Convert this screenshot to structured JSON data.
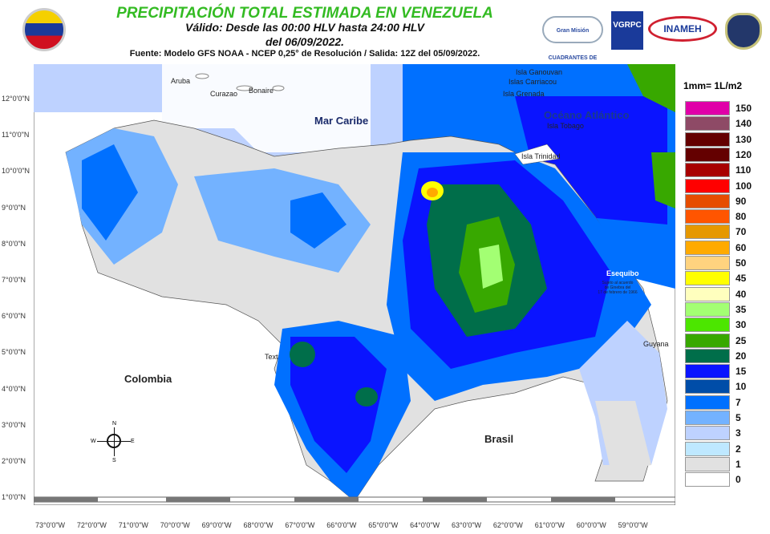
{
  "header": {
    "title": "PRECIPITACIÓN TOTAL ESTIMADA EN VENEZUELA",
    "valid": "Válido: Desde las 00:00 HLV hasta 24:00 HLV",
    "date": "del 06/09/2022.",
    "source": "Fuente: Modelo GFS NOAA - NCEP 0,25° de Resolución / Salida: 12Z del 05/09/2022."
  },
  "logos": {
    "cuadrantes": "Gran Misión CUADRANTES DE PAZ",
    "vgrpc": "VGRPC",
    "inameh": "INAMEH"
  },
  "legend": {
    "title": "1mm= 1L/m2",
    "items": [
      {
        "label": "150",
        "color": "#e000a8"
      },
      {
        "label": "140",
        "color": "#8e4a66"
      },
      {
        "label": "130",
        "color": "#640000"
      },
      {
        "label": "120",
        "color": "#640000"
      },
      {
        "label": "110",
        "color": "#a80000"
      },
      {
        "label": "100",
        "color": "#ff0000"
      },
      {
        "label": "90",
        "color": "#e64c00"
      },
      {
        "label": "80",
        "color": "#ff5500"
      },
      {
        "label": "70",
        "color": "#e69800"
      },
      {
        "label": "60",
        "color": "#ffaa00"
      },
      {
        "label": "50",
        "color": "#ffd37f"
      },
      {
        "label": "45",
        "color": "#ffff00"
      },
      {
        "label": "40",
        "color": "#ffffbe"
      },
      {
        "label": "35",
        "color": "#a3ff73"
      },
      {
        "label": "30",
        "color": "#4ce600"
      },
      {
        "label": "25",
        "color": "#38a800"
      },
      {
        "label": "20",
        "color": "#006e4a"
      },
      {
        "label": "15",
        "color": "#0a14ff"
      },
      {
        "label": "10",
        "color": "#004da8"
      },
      {
        "label": "7",
        "color": "#0070ff"
      },
      {
        "label": "5",
        "color": "#73b2ff"
      },
      {
        "label": "3",
        "color": "#bed2ff"
      },
      {
        "label": "2",
        "color": "#bee8ff"
      },
      {
        "label": "1",
        "color": "#e1e1e1"
      },
      {
        "label": "0",
        "color": "#ffffff"
      }
    ]
  },
  "axes": {
    "lon": [
      "73°0'0\"W",
      "72°0'0\"W",
      "71°0'0\"W",
      "70°0'0\"W",
      "69°0'0\"W",
      "68°0'0\"W",
      "67°0'0\"W",
      "66°0'0\"W",
      "65°0'0\"W",
      "64°0'0\"W",
      "63°0'0\"W",
      "62°0'0\"W",
      "61°0'0\"W",
      "60°0'0\"W",
      "59°0'0\"W"
    ],
    "lat": [
      "12°0'0\"N",
      "11°0'0\"N",
      "10°0'0\"N",
      "9°0'0\"N",
      "8°0'0\"N",
      "7°0'0\"N",
      "6°0'0\"N",
      "5°0'0\"N",
      "4°0'0\"N",
      "3°0'0\"N",
      "2°0'0\"N",
      "1°0'0\"N"
    ]
  },
  "labels": {
    "aruba": "Aruba",
    "curazao": "Curazao",
    "bonaire": "Bonaire",
    "mar_caribe": "Mar Caribe",
    "ganouvan": "Isla Ganouvan",
    "carriacou": "Islas Carriacou",
    "grenada": "Isla Grenada",
    "oceano": "Océano Atlántico",
    "tobago": "Isla Tobago",
    "trinidad": "Isla Trinidad",
    "esequibo": "Esequibo",
    "esequibo_note": [
      "Sujeto al acuerdo",
      "de Ginebra del",
      "17 de febrero de 1966"
    ],
    "guyana": "Guyana",
    "colombia": "Colombia",
    "brasil": "Brasil",
    "text": "Text"
  },
  "compass": {
    "n": "N",
    "s": "S",
    "e": "E",
    "w": "W"
  }
}
